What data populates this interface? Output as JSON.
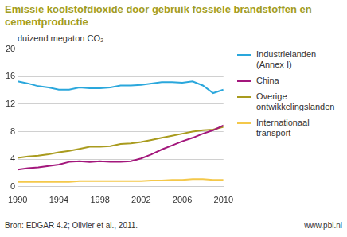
{
  "chart_data": {
    "type": "line",
    "title": "Emissie koolstofdioxide door gebruik fossiele brandstoffen en cementproductie",
    "ylabel": "duizend megaton CO₂",
    "source": "Bron: EDGAR 4.2; Olivier et al., 2011.",
    "website": "www.pbl.nl",
    "x": [
      1990,
      1991,
      1992,
      1993,
      1994,
      1995,
      1996,
      1997,
      1998,
      1999,
      2000,
      2001,
      2002,
      2003,
      2004,
      2005,
      2006,
      2007,
      2008,
      2009,
      2010
    ],
    "series": [
      {
        "name": "Industrielanden (Annex I)",
        "color": "#2aa7dc",
        "values": [
          15.3,
          15.0,
          14.6,
          14.4,
          14.1,
          14.1,
          14.4,
          14.3,
          14.3,
          14.4,
          14.7,
          14.7,
          14.8,
          15.0,
          15.2,
          15.2,
          15.1,
          15.3,
          14.7,
          13.6,
          14.1
        ]
      },
      {
        "name": "China",
        "color": "#a3177c",
        "values": [
          2.5,
          2.7,
          2.8,
          3.0,
          3.2,
          3.6,
          3.7,
          3.6,
          3.7,
          3.6,
          3.6,
          3.7,
          4.1,
          4.7,
          5.4,
          6.0,
          6.6,
          7.1,
          7.7,
          8.2,
          8.9
        ]
      },
      {
        "name": "Overige ontwikkelingslanden",
        "color": "#a99b1e",
        "values": [
          4.2,
          4.4,
          4.5,
          4.7,
          5.0,
          5.2,
          5.5,
          5.8,
          5.8,
          5.9,
          6.2,
          6.3,
          6.5,
          6.8,
          7.1,
          7.4,
          7.7,
          8.0,
          8.2,
          8.3,
          8.7
        ]
      },
      {
        "name": "Internationaal transport",
        "color": "#f4c84a",
        "values": [
          0.7,
          0.7,
          0.7,
          0.7,
          0.7,
          0.7,
          0.8,
          0.8,
          0.8,
          0.8,
          0.8,
          0.8,
          0.8,
          0.9,
          0.9,
          1.0,
          1.0,
          1.1,
          1.1,
          1.0,
          1.0
        ]
      }
    ],
    "xlim": [
      1990,
      2010
    ],
    "xticks": [
      1990,
      1994,
      1998,
      2002,
      2006,
      2010
    ],
    "ylim": [
      0,
      20
    ],
    "yticks": [
      0,
      4,
      8,
      12,
      16,
      20
    ],
    "grid": true,
    "legend": "right"
  }
}
